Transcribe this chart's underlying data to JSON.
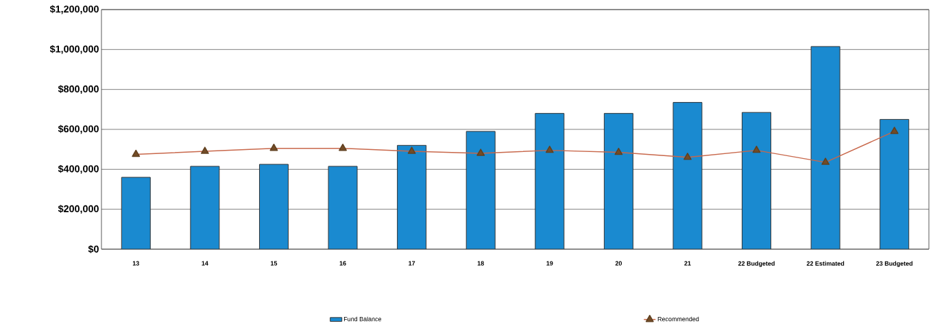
{
  "chart_data": {
    "type": "bar",
    "categories": [
      "13",
      "14",
      "15",
      "16",
      "17",
      "18",
      "19",
      "20",
      "21",
      "22 Budgeted",
      "22 Estimated",
      "23 Budgeted"
    ],
    "series": [
      {
        "name": "Fund Balance",
        "color": "#1a8ad0",
        "values": [
          360000,
          415000,
          425000,
          415000,
          520000,
          590000,
          680000,
          680000,
          735000,
          685000,
          1015000,
          650000
        ]
      },
      {
        "name": "Recommended",
        "type": "line",
        "color": "#c8674a",
        "values": [
          475000,
          490000,
          505000,
          505000,
          490000,
          480000,
          495000,
          485000,
          460000,
          495000,
          435000,
          590000
        ]
      }
    ],
    "ylim": [
      0,
      1200000
    ],
    "yticks": [
      {
        "value": 0,
        "label": "$0"
      },
      {
        "value": 200000,
        "label": "$200,000"
      },
      {
        "value": 400000,
        "label": "$400,000"
      },
      {
        "value": 600000,
        "label": "$600,000"
      },
      {
        "value": 800000,
        "label": "$800,000"
      },
      {
        "value": 1000000,
        "label": "$1,000,000"
      },
      {
        "value": 1200000,
        "label": "$1,200,000"
      }
    ],
    "grid": "y",
    "legend": "bottom",
    "marker": "triangle",
    "line_style": "solid"
  }
}
